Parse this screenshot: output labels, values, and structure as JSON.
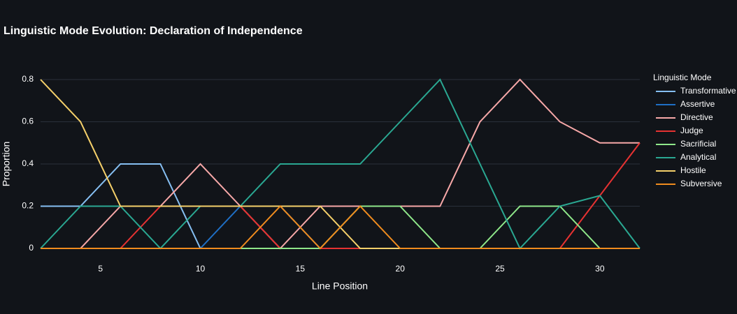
{
  "chart_data": {
    "type": "line",
    "title": "Linguistic Mode Evolution: Declaration of Independence",
    "x_label": "Line Position",
    "y_label": "Proportion",
    "legend_title": "Linguistic Mode",
    "legend_position": "right",
    "grid": true,
    "x": [
      2,
      4,
      6,
      8,
      10,
      12,
      14,
      16,
      18,
      20,
      22,
      24,
      26,
      28,
      30,
      32
    ],
    "xlim": [
      2,
      32
    ],
    "xticks": [
      5,
      10,
      15,
      20,
      25,
      30
    ],
    "ylim": [
      0,
      0.8
    ],
    "yticks": [
      0,
      0.2,
      0.4,
      0.6,
      0.8
    ],
    "series": [
      {
        "name": "Transformative",
        "color": "#86bff2",
        "values": [
          0.2,
          0.2,
          0.4,
          0.4,
          0,
          0,
          0,
          0,
          0,
          0,
          0,
          0,
          0,
          0,
          0,
          0
        ]
      },
      {
        "name": "Assertive",
        "color": "#1f6fc5",
        "values": [
          0,
          0,
          0,
          0,
          0,
          0.2,
          0.2,
          0,
          0,
          0,
          0,
          0,
          0,
          0,
          0,
          0
        ]
      },
      {
        "name": "Directive",
        "color": "#f7a8a8",
        "values": [
          0,
          0,
          0.2,
          0.2,
          0.4,
          0.2,
          0,
          0.2,
          0.2,
          0.2,
          0.2,
          0.6,
          0.8,
          0.6,
          0.5,
          0.5
        ]
      },
      {
        "name": "Judge",
        "color": "#e63232",
        "values": [
          0,
          0,
          0,
          0.2,
          0.2,
          0.2,
          0,
          0,
          0,
          0,
          0,
          0,
          0,
          0,
          0.25,
          0.5
        ]
      },
      {
        "name": "Sacrificial",
        "color": "#8fe88a",
        "values": [
          0,
          0,
          0,
          0,
          0,
          0,
          0,
          0,
          0.2,
          0.2,
          0,
          0,
          0.2,
          0.2,
          0,
          0
        ]
      },
      {
        "name": "Analytical",
        "color": "#2aa892",
        "values": [
          0,
          0.2,
          0.2,
          0,
          0.2,
          0.2,
          0.4,
          0.4,
          0.4,
          0.6,
          0.8,
          0.4,
          0,
          0.2,
          0.25,
          0
        ]
      },
      {
        "name": "Hostile",
        "color": "#f5d06a",
        "values": [
          0.8,
          0.6,
          0.2,
          0.2,
          0.2,
          0.2,
          0.2,
          0.2,
          0,
          0,
          0,
          0,
          0,
          0,
          0,
          0
        ]
      },
      {
        "name": "Subversive",
        "color": "#f08c1e",
        "values": [
          0,
          0,
          0,
          0,
          0,
          0,
          0.2,
          0,
          0.2,
          0,
          0,
          0,
          0,
          0,
          0,
          0
        ]
      }
    ]
  }
}
